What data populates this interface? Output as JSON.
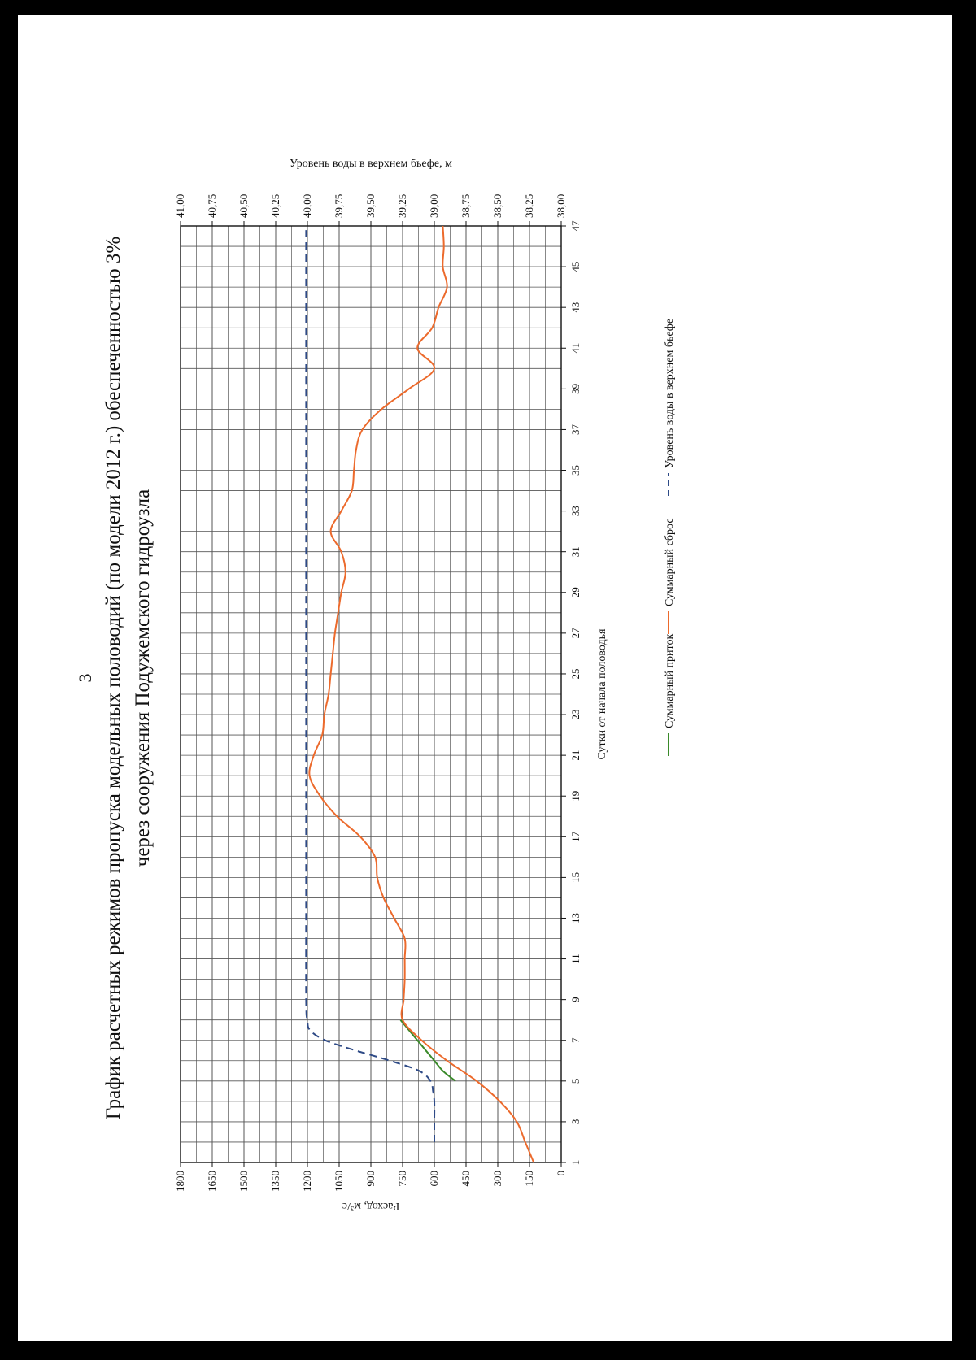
{
  "page_number": "3",
  "title_line1": "График расчетных режимов пропуска модельных половодий (по модели 2012 г.) обеспеченностью 3%",
  "title_line2": "через сооружения Подужемского гидроузла",
  "chart_data": {
    "type": "line",
    "xlabel": "Сутки от начала половодья",
    "ylabel": "Расход, м³/с",
    "y2label": "Уровень воды в верхнем бьефе, м",
    "xlim": [
      1,
      47
    ],
    "ylim": [
      0,
      1800
    ],
    "y2lim": [
      38.0,
      41.0
    ],
    "x_ticks": [
      "1",
      "3",
      "5",
      "7",
      "9",
      "11",
      "13",
      "15",
      "17",
      "19",
      "21",
      "23",
      "25",
      "27",
      "29",
      "31",
      "33",
      "35",
      "37",
      "39",
      "41",
      "43",
      "45",
      "47"
    ],
    "y_ticks": [
      "0",
      "150",
      "300",
      "450",
      "600",
      "750",
      "900",
      "1050",
      "1200",
      "1350",
      "1500",
      "1650",
      "1800"
    ],
    "y2_ticks": [
      "38,00",
      "38,25",
      "38,50",
      "38,75",
      "39,00",
      "39,25",
      "39,50",
      "39,75",
      "40,00",
      "40,25",
      "40,50",
      "40,75",
      "41,00"
    ],
    "grid": true,
    "legend_position": "bottom",
    "series": [
      {
        "name": "Суммарный приток",
        "color": "#3a8a2a",
        "axis": "left",
        "dash": "solid",
        "x": [
          5,
          5.5,
          6,
          6.5,
          7,
          7.5,
          8
        ],
        "y": [
          500,
          560,
          600,
          640,
          680,
          720,
          760
        ]
      },
      {
        "name": "Суммарный сброс",
        "color": "#ec6a2c",
        "axis": "left",
        "dash": "solid",
        "x": [
          1,
          2,
          3,
          4,
          5,
          6,
          7,
          8,
          9,
          10,
          11,
          12,
          13,
          14,
          15,
          16,
          17,
          18,
          19,
          20,
          21,
          22,
          23,
          24,
          25,
          26,
          27,
          28,
          29,
          30,
          31,
          32,
          33,
          34,
          35,
          36,
          37,
          38,
          39,
          40,
          41,
          42,
          43,
          44,
          45,
          46,
          47
        ],
        "y": [
          130,
          170,
          210,
          290,
          400,
          540,
          660,
          750,
          745,
          740,
          740,
          740,
          790,
          840,
          870,
          880,
          950,
          1060,
          1140,
          1190,
          1170,
          1130,
          1120,
          1100,
          1090,
          1080,
          1070,
          1055,
          1040,
          1020,
          1040,
          1090,
          1040,
          990,
          980,
          970,
          940,
          850,
          720,
          600,
          680,
          610,
          580,
          540,
          560,
          555,
          560
        ]
      },
      {
        "name": "Уровень воды в верхнем бьефе",
        "color": "#2e4a86",
        "axis": "right",
        "dash": "dashed",
        "x": [
          2,
          3,
          4,
          4.5,
          5,
          5.5,
          6,
          6.5,
          7,
          7.5,
          8,
          9,
          15,
          25,
          35,
          47
        ],
        "y": [
          39.0,
          39.0,
          39.0,
          39.01,
          39.03,
          39.12,
          39.35,
          39.62,
          39.86,
          39.98,
          40.0,
          40.01,
          40.01,
          40.01,
          40.01,
          40.01
        ]
      }
    ]
  }
}
